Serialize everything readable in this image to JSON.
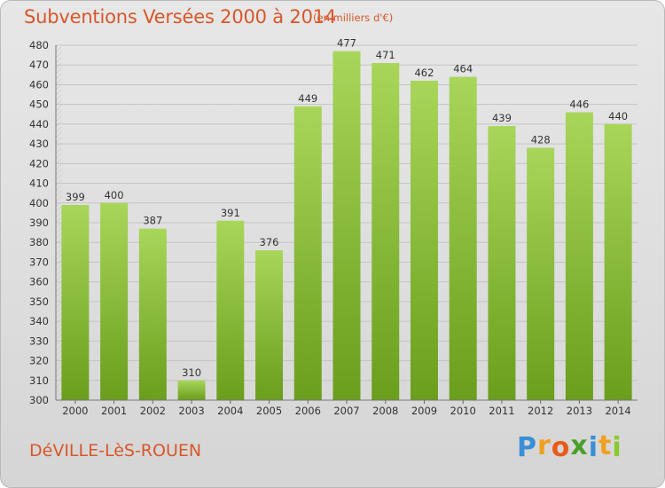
{
  "header": {
    "title": "Subventions Versées 2000 à 2014",
    "unit_note": "(en milliers d'€)"
  },
  "footer": {
    "place_name": "DéVILLE-LèS-ROUEN",
    "brand_letters": [
      "P",
      "r",
      "o",
      "x",
      "i",
      "t",
      "i"
    ]
  },
  "colors": {
    "title": "#d8572a",
    "bar_light": "#a8d65a",
    "bar_dark": "#6a9e1c",
    "brand": [
      "#3a8fd6",
      "#f0a020",
      "#e85a1a",
      "#4a9f2a",
      "#3a8fd6",
      "#f0a020",
      "#8acb2a"
    ]
  },
  "chart_data": {
    "type": "bar",
    "categories": [
      "2000",
      "2001",
      "2002",
      "2003",
      "2004",
      "2005",
      "2006",
      "2007",
      "2008",
      "2009",
      "2010",
      "2011",
      "2012",
      "2013",
      "2014"
    ],
    "values": [
      399,
      400,
      387,
      310,
      391,
      376,
      449,
      477,
      471,
      462,
      464,
      439,
      428,
      446,
      440
    ],
    "ylim": [
      300,
      480
    ],
    "yticks": [
      300,
      310,
      320,
      330,
      340,
      350,
      360,
      370,
      380,
      390,
      400,
      410,
      420,
      430,
      440,
      450,
      460,
      470,
      480
    ],
    "grid": true,
    "legend": "none",
    "data_labels": true
  }
}
